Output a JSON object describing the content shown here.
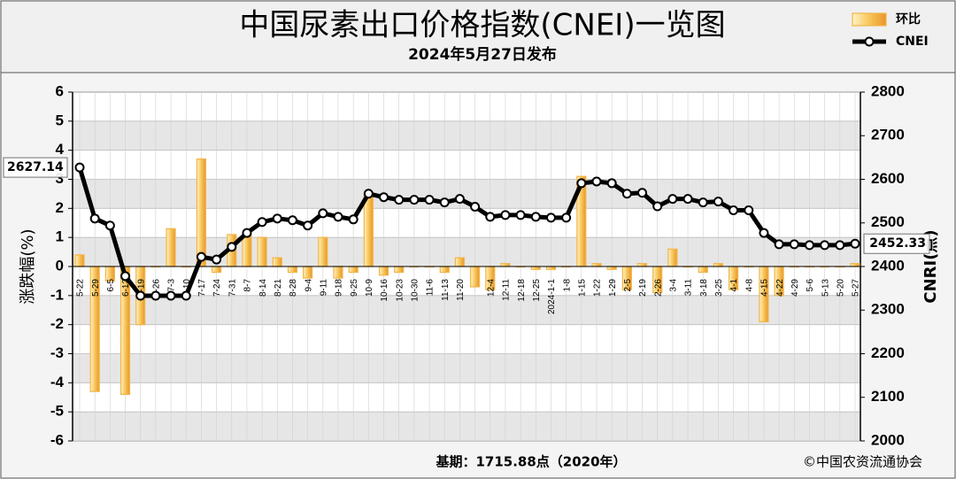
{
  "chart_data": {
    "type": "bar-line",
    "title": "中国尿素出口价格指数(CNEI)一览图",
    "subtitle": "2024年5月27日发布",
    "y_label": "涨跌幅(%)",
    "y2_label": "CNRI(点)",
    "footnote": "基期：1715.88点（2020年）",
    "source": "©中国农资流通协会",
    "legend": "top-right",
    "grid": true,
    "categories": [
      "5-22",
      "5-29",
      "6-5",
      "6-12",
      "6-19",
      "6-26",
      "7-3",
      "7-10",
      "7-17",
      "7-24",
      "7-31",
      "8-7",
      "8-14",
      "8-21",
      "8-28",
      "9-4",
      "9-11",
      "9-18",
      "9-25",
      "10-9",
      "10-16",
      "10-23",
      "10-30",
      "11-6",
      "11-13",
      "11-20",
      null,
      "12-4",
      "12-11",
      "12-18",
      "12-25",
      "2024-1-1",
      "1-8",
      "1-15",
      "1-22",
      "1-29",
      "2-5",
      "2-19",
      "2-26",
      "3-4",
      "3-11",
      "3-18",
      "3-25",
      "4-1",
      "4-8",
      "4-15",
      "4-22",
      "4-29",
      "5-6",
      "5-13",
      "5-20",
      "5-27"
    ],
    "series": [
      {
        "name": "环比",
        "type": "bar",
        "color": "#f2b54a",
        "axis": "y",
        "values": [
          0.4,
          -4.3,
          -0.5,
          -4.4,
          -2.0,
          0,
          1.3,
          0,
          3.7,
          -0.2,
          1.1,
          1.1,
          1.0,
          0.3,
          -0.2,
          -0.4,
          1.0,
          -0.4,
          -0.2,
          2.5,
          -0.3,
          -0.2,
          0,
          0,
          -0.2,
          0.3,
          -0.7,
          -0.8,
          0.1,
          0,
          -0.1,
          -0.1,
          0,
          3.1,
          0.1,
          -0.1,
          -0.8,
          0.1,
          -0.9,
          0.6,
          0,
          -0.2,
          0.1,
          -0.8,
          0,
          -1.9,
          -1.0,
          0,
          0,
          0,
          0,
          0.1
        ]
      },
      {
        "name": "CNEI",
        "type": "line",
        "color": "#000000",
        "axis": "y2",
        "values": [
          2627.14,
          2510,
          2494,
          2378,
          2333,
          2333,
          2333,
          2333,
          2422,
          2416,
          2445,
          2477,
          2502,
          2510,
          2506,
          2494,
          2522,
          2514,
          2508,
          2567,
          2559,
          2553,
          2553,
          2553,
          2547,
          2555,
          2537,
          2514,
          2518,
          2518,
          2514,
          2512,
          2512,
          2591,
          2595,
          2591,
          2567,
          2569,
          2538,
          2555,
          2555,
          2547,
          2549,
          2529,
          2529,
          2477,
          2451,
          2451,
          2449,
          2449,
          2449,
          2452.33
        ]
      }
    ],
    "ylim": [
      -6,
      6
    ],
    "yticks": [
      -6,
      -5,
      -4,
      -3,
      -2,
      -1,
      0,
      1,
      2,
      3,
      4,
      5,
      6
    ],
    "y2lim": [
      2000,
      2800
    ],
    "y2ticks": [
      2000,
      2100,
      2200,
      2300,
      2400,
      2500,
      2600,
      2700,
      2800
    ]
  }
}
